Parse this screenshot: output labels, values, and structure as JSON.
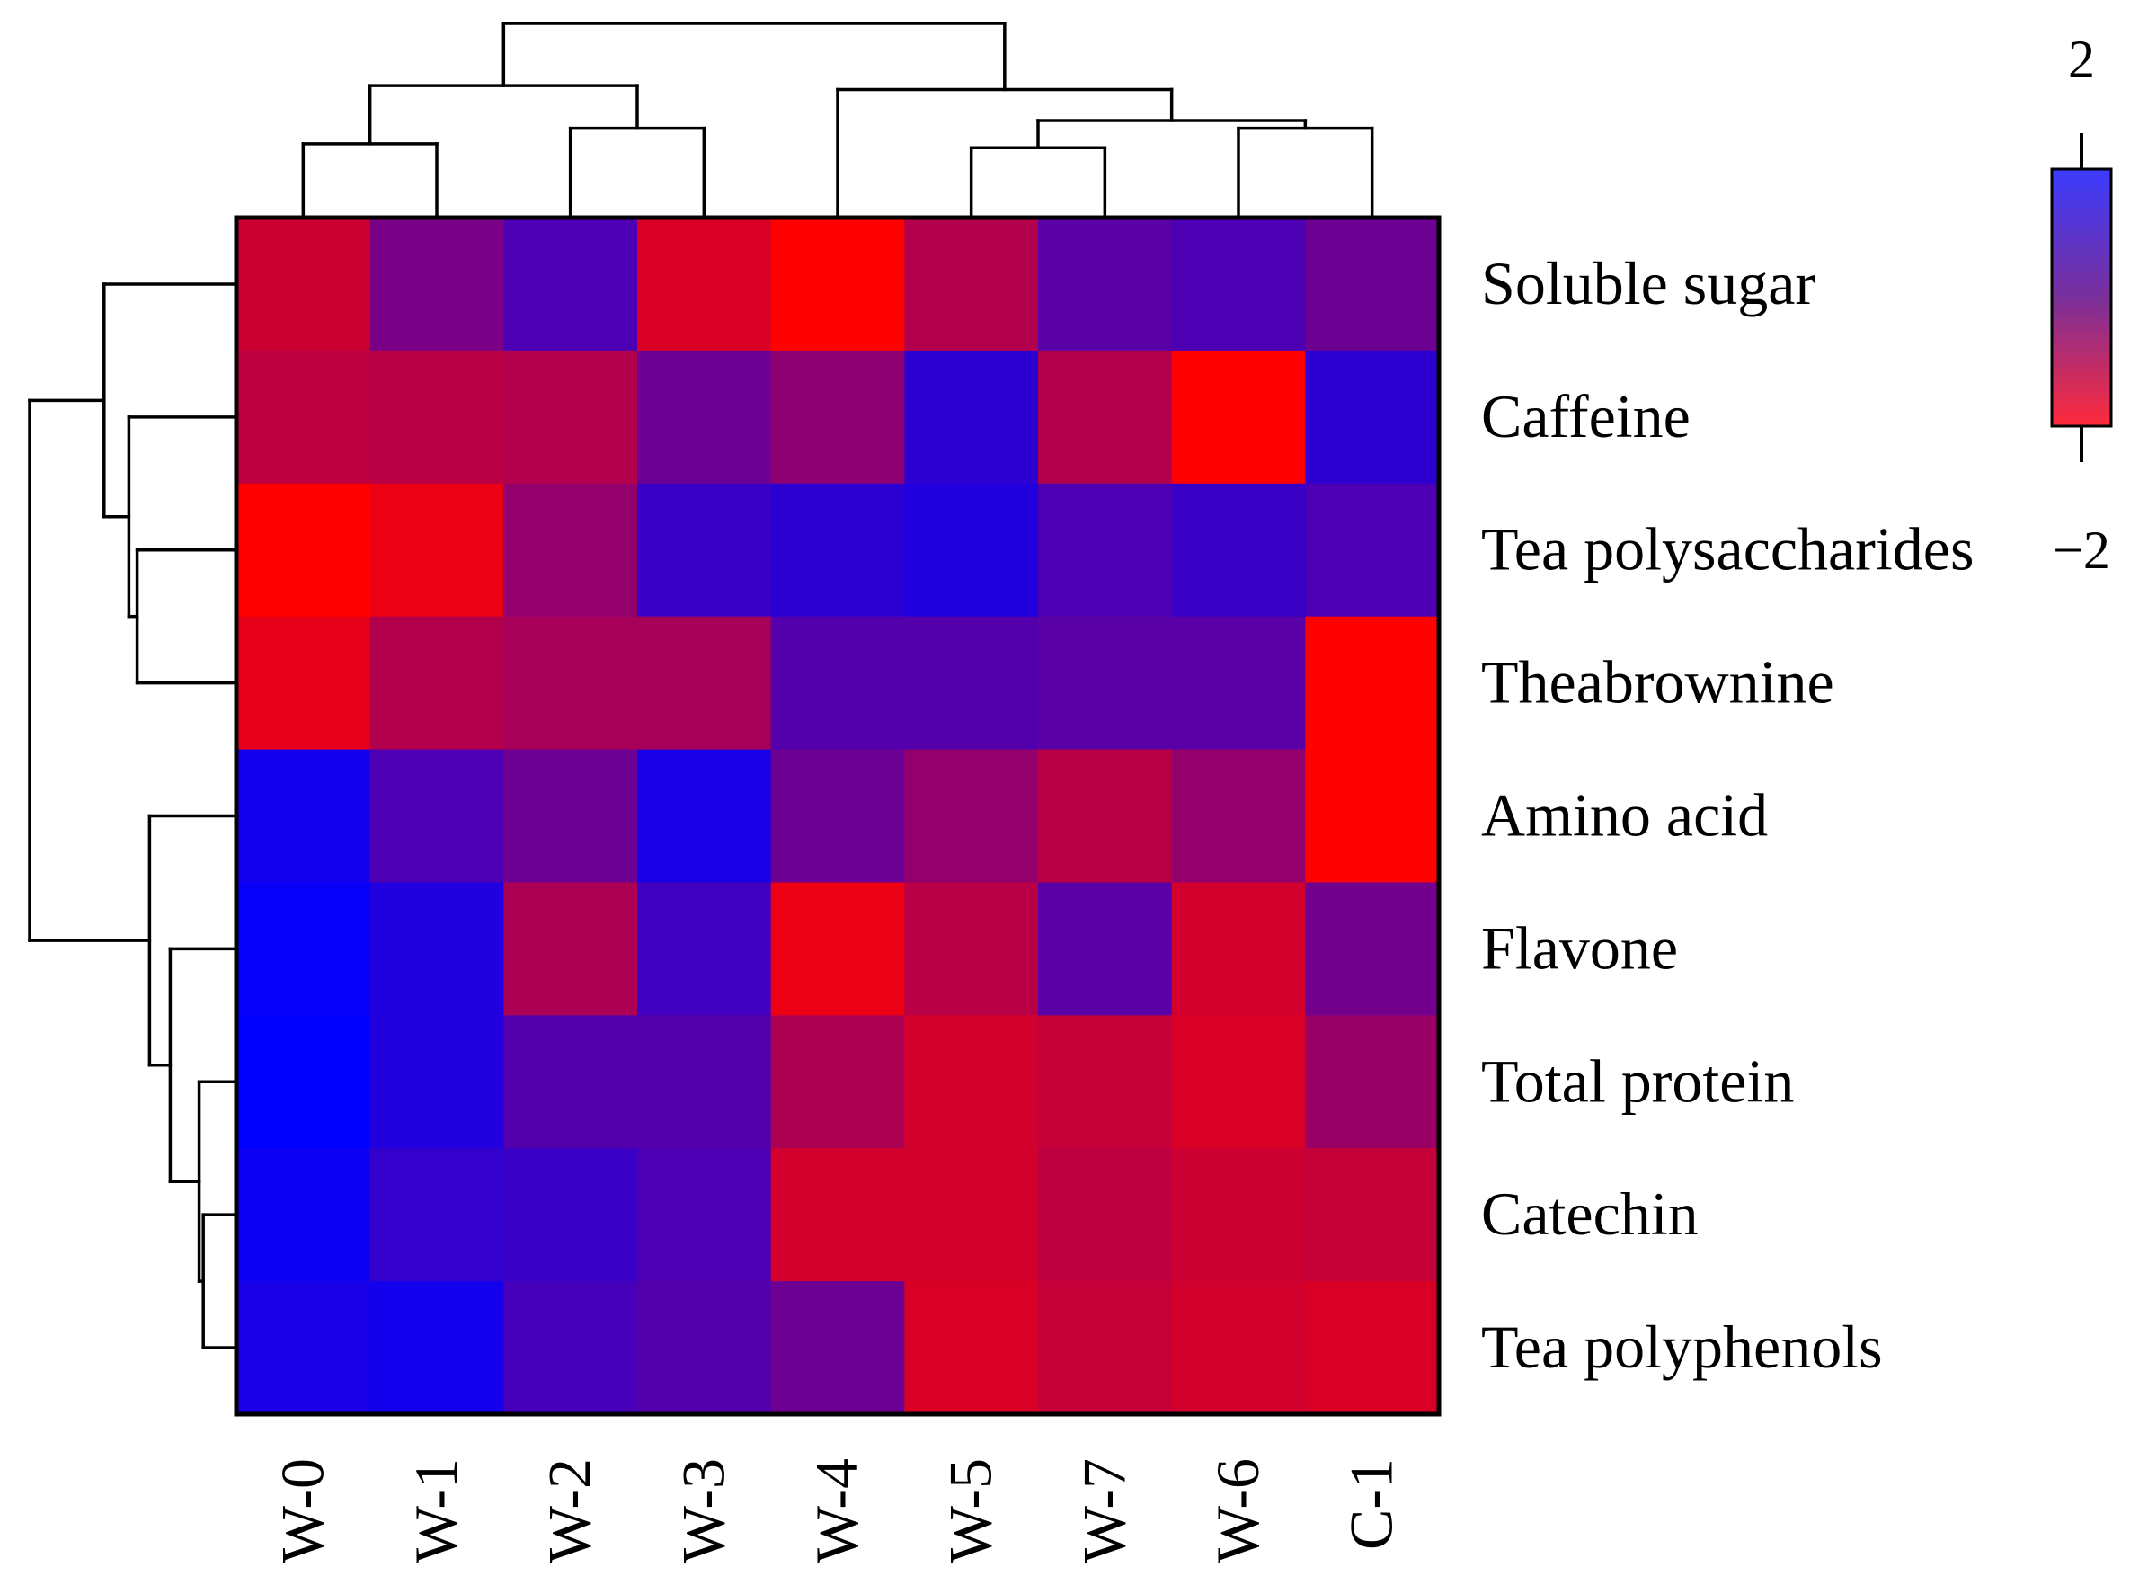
{
  "chart_data": {
    "type": "heatmap",
    "title": "",
    "columns": [
      "W-0",
      "W-1",
      "W-2",
      "W-3",
      "W-4",
      "W-5",
      "W-7",
      "W-6",
      "C-1"
    ],
    "rows": [
      "Soluble sugar",
      "Caffeine",
      "Tea polysaccharides",
      "Theabrownine",
      "Amino acid",
      "Flavone",
      "Total protein",
      "Catechin",
      "Tea polyphenols"
    ],
    "values": [
      [
        -1.2,
        0.1,
        0.8,
        -1.4,
        -2.0,
        -0.8,
        0.6,
        0.8,
        0.3
      ],
      [
        -1.0,
        -0.9,
        -0.8,
        0.3,
        -0.2,
        1.3,
        -0.8,
        -2.0,
        1.3
      ],
      [
        -2.0,
        -1.7,
        -0.3,
        1.1,
        1.3,
        1.5,
        0.8,
        1.1,
        0.8
      ],
      [
        -1.6,
        -0.8,
        -0.6,
        -0.6,
        0.7,
        0.7,
        0.6,
        0.6,
        -2.0
      ],
      [
        1.7,
        0.8,
        0.3,
        1.6,
        0.3,
        -0.3,
        -0.9,
        -0.3,
        -2.0
      ],
      [
        1.9,
        1.5,
        -0.7,
        1.0,
        -1.7,
        -0.9,
        0.6,
        -1.3,
        0.2
      ],
      [
        2.0,
        1.5,
        0.7,
        0.7,
        -0.7,
        -1.3,
        -1.1,
        -1.4,
        -0.4
      ],
      [
        1.8,
        1.2,
        1.1,
        0.8,
        -1.3,
        -1.3,
        -1.0,
        -1.2,
        -1.1
      ],
      [
        1.6,
        1.7,
        0.9,
        0.7,
        0.3,
        -1.4,
        -1.1,
        -1.3,
        -1.4
      ]
    ],
    "color_scale": {
      "min": -2,
      "max": 2,
      "low_color": "#ff0000",
      "high_color": "#0000ff"
    },
    "legend": {
      "max_label": "2",
      "min_label": "−2"
    },
    "row_dendrogram": {
      "leaf_order": [
        "Soluble sugar",
        "Caffeine",
        "Tea polysaccharides",
        "Theabrownine",
        "Amino acid",
        "Flavone",
        "Total protein",
        "Catechin",
        "Tea polyphenols"
      ],
      "merges": [
        {
          "a": [
            2
          ],
          "b": [
            3
          ],
          "height": 0.24
        },
        {
          "a": [
            1
          ],
          "b": [
            2,
            3
          ],
          "height": 0.26
        },
        {
          "a": [
            0
          ],
          "b": [
            1,
            2,
            3
          ],
          "height": 0.32
        },
        {
          "a": [
            7
          ],
          "b": [
            8
          ],
          "height": 0.08
        },
        {
          "a": [
            6
          ],
          "b": [
            7,
            8
          ],
          "height": 0.09
        },
        {
          "a": [
            5
          ],
          "b": [
            6,
            7,
            8
          ],
          "height": 0.16
        },
        {
          "a": [
            4
          ],
          "b": [
            5,
            6,
            7,
            8
          ],
          "height": 0.21
        },
        {
          "a": [
            0,
            1,
            2,
            3
          ],
          "b": [
            4,
            5,
            6,
            7,
            8
          ],
          "height": 0.5
        }
      ]
    },
    "column_dendrogram": {
      "leaf_order": [
        "W-0",
        "W-1",
        "W-2",
        "W-3",
        "W-4",
        "W-5",
        "W-7",
        "W-6",
        "C-1"
      ],
      "merges": [
        {
          "a": [
            0
          ],
          "b": [
            1
          ],
          "height": 0.19
        },
        {
          "a": [
            2
          ],
          "b": [
            3
          ],
          "height": 0.23
        },
        {
          "a": [
            0,
            1
          ],
          "b": [
            2,
            3
          ],
          "height": 0.34
        },
        {
          "a": [
            5
          ],
          "b": [
            6
          ],
          "height": 0.18
        },
        {
          "a": [
            7
          ],
          "b": [
            8
          ],
          "height": 0.23
        },
        {
          "a": [
            5,
            6
          ],
          "b": [
            7,
            8
          ],
          "height": 0.25
        },
        {
          "a": [
            4
          ],
          "b": [
            5,
            6,
            7,
            8
          ],
          "height": 0.33
        },
        {
          "a": [
            0,
            1,
            2,
            3
          ],
          "b": [
            4,
            5,
            6,
            7,
            8
          ],
          "height": 0.5
        }
      ]
    }
  }
}
